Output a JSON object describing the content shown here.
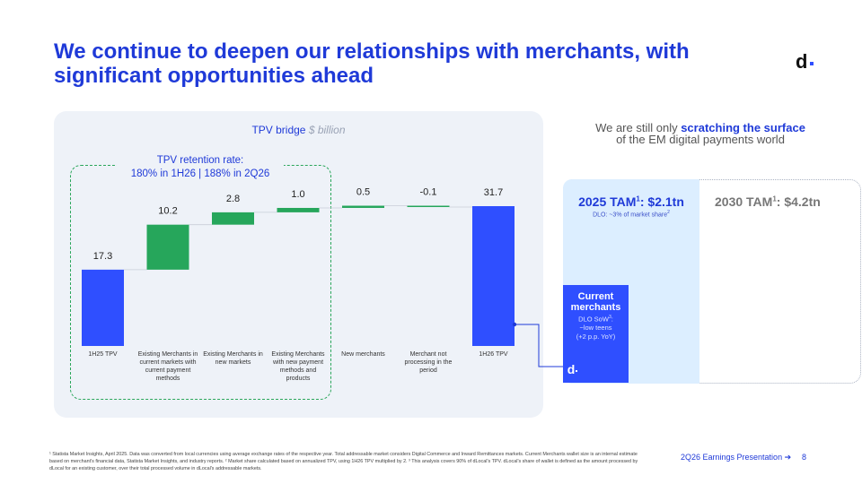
{
  "slide": {
    "title": "We continue to deepen our relationships with merchants, with significant opportunities ahead",
    "logo": "d"
  },
  "chart_data": {
    "type": "waterfall",
    "title": "TPV bridge",
    "subtitle": "$ billion",
    "categories": [
      "1H25 TPV",
      "Existing Merchants in current markets with current payment methods",
      "Existing Merchants in new markets",
      "Existing Merchants with new payment methods and products",
      "New merchants",
      "Merchant not processing in the period",
      "1H26 TPV"
    ],
    "category_lines": [
      [
        "1H25 TPV"
      ],
      [
        "Existing Merchants in",
        "current markets with",
        "current payment",
        "methods"
      ],
      [
        "Existing Merchants in",
        "new markets"
      ],
      [
        "Existing Merchants",
        "with new payment",
        "methods and",
        "products"
      ],
      [
        "New merchants"
      ],
      [
        "Merchant not",
        "processing in the",
        "period"
      ],
      [
        "1H26 TPV"
      ]
    ],
    "values": [
      17.3,
      10.2,
      2.8,
      1.0,
      0.5,
      -0.1,
      31.7
    ],
    "value_labels": [
      "17.3",
      "10.2",
      "2.8",
      "1.0",
      "0.5",
      "-0.1",
      "31.7"
    ],
    "kinds": [
      "total",
      "delta",
      "delta",
      "delta",
      "delta",
      "delta",
      "total"
    ],
    "colors": {
      "total": "#2f4fff",
      "delta": "#26a65b",
      "connector": "#c8cdd8"
    }
  },
  "retention": {
    "label": "TPV retention rate:",
    "value": "180% in 1H26 | 188% in 2Q26"
  },
  "tam": {
    "heading_pre": "We are still only ",
    "heading_bold": "scratching the surface",
    "heading_post": " of the EM digital payments world",
    "tam2025_label": "2025 TAM",
    "tam2025_sup": "1",
    "tam2025_value": ": $2.1tn",
    "tam2025_sub": "DLO: ~3% of market share",
    "tam2025_sub_sup": "2",
    "tam2030_label": "2030 TAM",
    "tam2030_sup": "1",
    "tam2030_value": ": $4.2tn",
    "current_merchants": "Current merchants",
    "cm_line1": "DLO SoW",
    "cm_line1_sup": "3",
    "cm_line1_end": ":",
    "cm_line2": "~low teens",
    "cm_line3": "(+2 p.p. YoY)",
    "badge": "d"
  },
  "footer": {
    "footnote": "¹ Statista Market Insights, April 2025. Data was converted from local currencies using average exchange rates of the respective year. Total addressable market considers Digital Commerce and Inward Remittances markets. Current Merchants wallet size is an internal estimate based on merchant's financial data, Statista Market Insights, and industry reports. ² Market share calculated based on annualized TPV, using 1H26 TPV multiplied by 2. ³ This analysis covers 90% of dLocal's TPV. dLocal's share of wallet is defined as the amount processed by dLocal for an existing customer, over their total processed volume in dLocal's addressable markets.",
    "presentation": "2Q26 Earnings Presentation ➔",
    "page": "8"
  },
  "colors": {
    "brand_blue": "#1f3ad8",
    "bar_blue": "#2f4fff",
    "bar_green": "#26a65b",
    "panel_bg": "#eef2f8",
    "tam_light": "#dceeff"
  }
}
